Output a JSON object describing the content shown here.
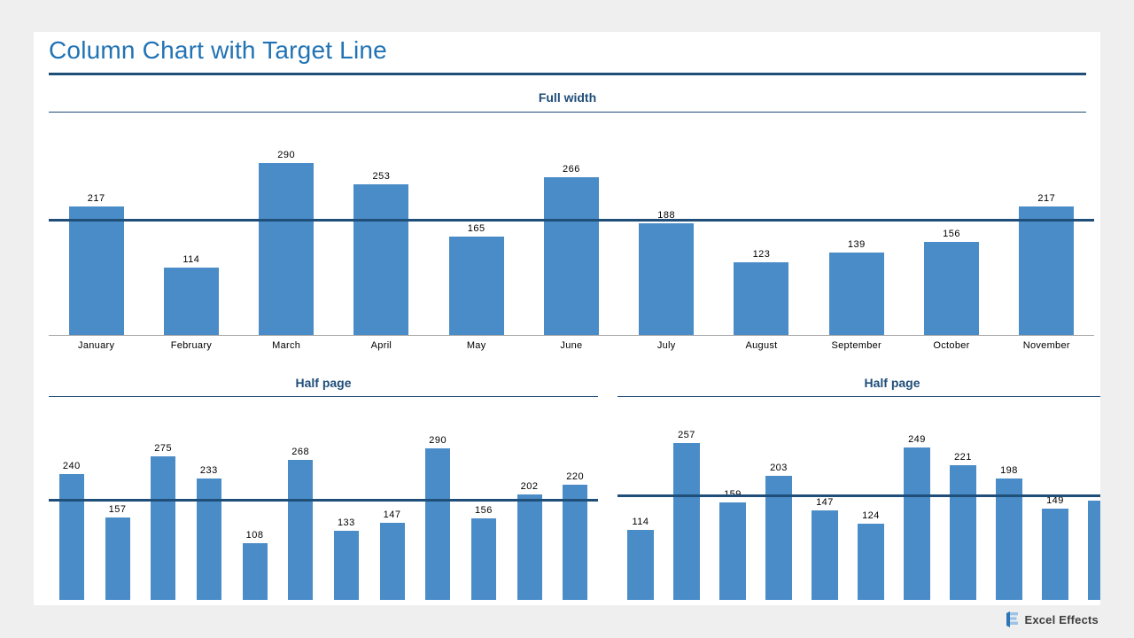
{
  "page": {
    "title": "Column Chart with Target Line",
    "logo_text": "Excel Effects"
  },
  "colors": {
    "background": "#EFEFEF",
    "bar": "#4A8CC7",
    "target_line": "#1F4E79",
    "heading": "#1F4E79",
    "title_text": "#2173B4",
    "axis": "#A6A6A6"
  },
  "chart_data": [
    {
      "id": "full-width",
      "type": "bar",
      "title": "Full width",
      "categories": [
        "January",
        "February",
        "March",
        "April",
        "May",
        "June",
        "July",
        "August",
        "September",
        "October",
        "November"
      ],
      "values": [
        217,
        114,
        290,
        253,
        165,
        266,
        188,
        123,
        139,
        156,
        217
      ],
      "data_labels": [
        "217",
        "114",
        "290",
        "253",
        "165",
        "266",
        "188",
        "123",
        "139",
        "156",
        "217"
      ],
      "target_line": 193,
      "ylim": [
        0,
        310
      ],
      "grid": false,
      "legend": false
    },
    {
      "id": "half-page-left",
      "type": "bar",
      "title": "Half page",
      "categories": [],
      "values": [
        240,
        157,
        275,
        233,
        108,
        268,
        133,
        147,
        290,
        156,
        202,
        220
      ],
      "data_labels": [
        "240",
        "157",
        "275",
        "233",
        "108",
        "268",
        "133",
        "147",
        "290",
        "156",
        "202",
        "220"
      ],
      "target_line": 190,
      "ylim": [
        0,
        330
      ],
      "grid": false,
      "legend": false
    },
    {
      "id": "half-page-right",
      "type": "bar",
      "title": "Half page",
      "categories": [],
      "values": [
        114,
        257,
        159,
        203,
        147,
        124,
        249,
        221,
        198,
        149,
        162
      ],
      "data_labels": [
        "114",
        "257",
        "159",
        "203",
        "147",
        "124",
        "249",
        "221",
        "198",
        "149",
        ""
      ],
      "target_line": 169,
      "ylim": [
        0,
        330
      ],
      "grid": false,
      "legend": false
    }
  ]
}
